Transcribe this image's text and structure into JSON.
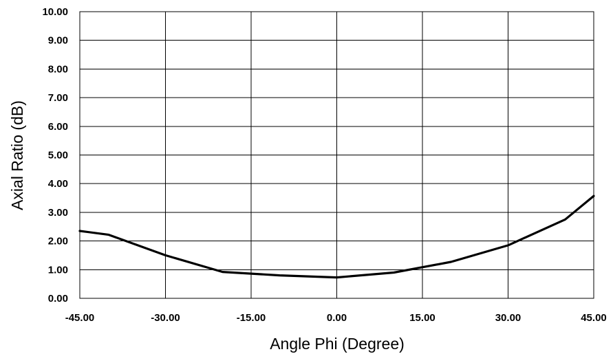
{
  "chart_data": {
    "type": "line",
    "title": "",
    "xlabel": "Angle Phi (Degree)",
    "ylabel": "Axial Ratio (dB)",
    "xlim": [
      -45,
      45
    ],
    "ylim": [
      0,
      10
    ],
    "x_ticks": [
      -45,
      -30,
      -15,
      0,
      15,
      30,
      45
    ],
    "y_ticks": [
      0,
      1,
      2,
      3,
      4,
      5,
      6,
      7,
      8,
      9,
      10
    ],
    "x_tick_labels": [
      "-45.00",
      "-30.00",
      "-15.00",
      "0.00",
      "15.00",
      "30.00",
      "45.00"
    ],
    "y_tick_labels": [
      "0.00",
      "1.00",
      "2.00",
      "3.00",
      "4.00",
      "5.00",
      "6.00",
      "7.00",
      "8.00",
      "9.00",
      "10.00"
    ],
    "grid": true,
    "legend": "none",
    "line_color": "#000000",
    "series": [
      {
        "x": [
          -45,
          -40,
          -30,
          -20,
          -10,
          0,
          10,
          20,
          30,
          40,
          45
        ],
        "y": [
          2.35,
          2.22,
          1.5,
          0.92,
          0.8,
          0.73,
          0.9,
          1.27,
          1.85,
          2.75,
          3.57
        ]
      }
    ]
  }
}
